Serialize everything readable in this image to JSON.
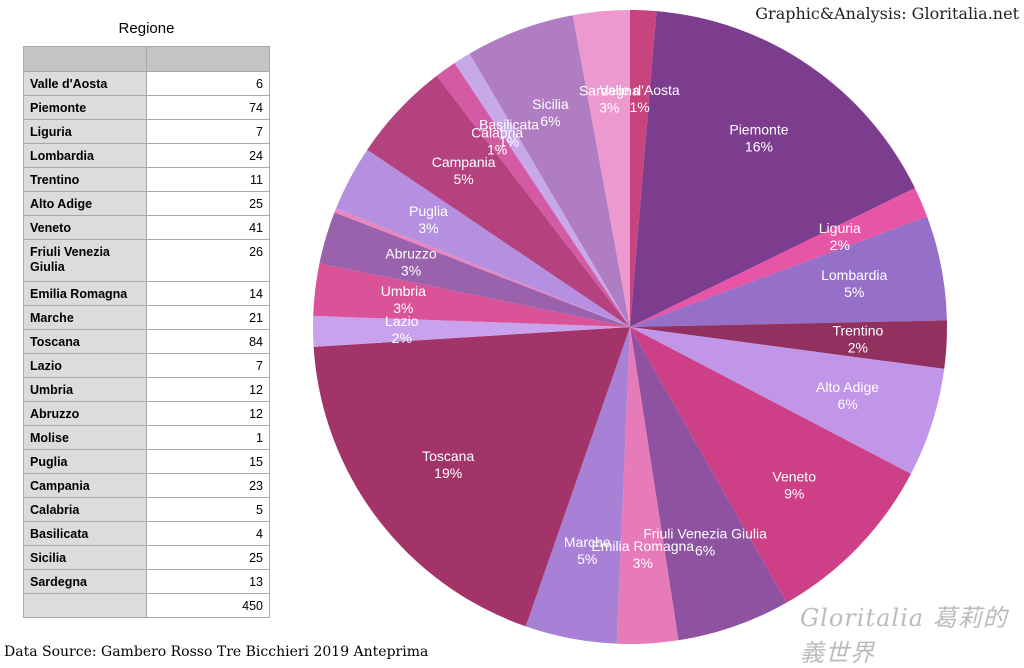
{
  "table": {
    "title": "Regione",
    "header": [
      "",
      ""
    ],
    "total": "450"
  },
  "credit": "Graphic&Analysis: Gloritalia.net",
  "source": "Data Source: Gambero Rosso Tre Bicchieri 2019 Anteprima",
  "signature": "Gloritalia 葛莉的義世界",
  "chart_data": {
    "type": "pie",
    "title": "",
    "start": "12 o'clock",
    "direction": "clockwise",
    "slices": [
      {
        "name": "Valle d'Aosta",
        "value": 6,
        "percent": "1%",
        "color": "#c8447e"
      },
      {
        "name": "Piemonte",
        "value": 74,
        "percent": "16%",
        "color": "#7d3d8f"
      },
      {
        "name": "Liguria",
        "value": 7,
        "percent": "2%",
        "color": "#e755a6"
      },
      {
        "name": "Lombardia",
        "value": 24,
        "percent": "5%",
        "color": "#9670c8"
      },
      {
        "name": "Trentino",
        "value": 11,
        "percent": "2%",
        "color": "#92315f"
      },
      {
        "name": "Alto Adige",
        "value": 25,
        "percent": "6%",
        "color": "#c195e8"
      },
      {
        "name": "Veneto",
        "value": 41,
        "percent": "9%",
        "color": "#cd3f86"
      },
      {
        "name": "Friuli Venezia Giulia",
        "value": 26,
        "percent": "6%",
        "color": "#8e52a0"
      },
      {
        "name": "Emilia Romagna",
        "value": 14,
        "percent": "3%",
        "color": "#e77ab8"
      },
      {
        "name": "Marche",
        "value": 21,
        "percent": "5%",
        "color": "#a881d6"
      },
      {
        "name": "Toscana",
        "value": 84,
        "percent": "19%",
        "color": "#a2346a"
      },
      {
        "name": "Lazio",
        "value": 7,
        "percent": "2%",
        "color": "#c9a1ec"
      },
      {
        "name": "Umbria",
        "value": 12,
        "percent": "3%",
        "color": "#da5398"
      },
      {
        "name": "Abruzzo",
        "value": 12,
        "percent": "3%",
        "color": "#9a62ad"
      },
      {
        "name": "Molise",
        "value": 1,
        "percent": "",
        "color": "#e986c1"
      },
      {
        "name": "Puglia",
        "value": 15,
        "percent": "3%",
        "color": "#b690e0"
      },
      {
        "name": "Campania",
        "value": 23,
        "percent": "5%",
        "color": "#b4427f"
      },
      {
        "name": "Calabria",
        "value": 5,
        "percent": "1%",
        "color": "#d35aa3"
      },
      {
        "name": "Basilicata",
        "value": 4,
        "percent": "1%",
        "color": "#c7a9ea"
      },
      {
        "name": "Sicilia",
        "value": 25,
        "percent": "6%",
        "color": "#b07cc2"
      },
      {
        "name": "Sardegna",
        "value": 13,
        "percent": "3%",
        "color": "#ec99cf"
      }
    ],
    "total": 450
  }
}
